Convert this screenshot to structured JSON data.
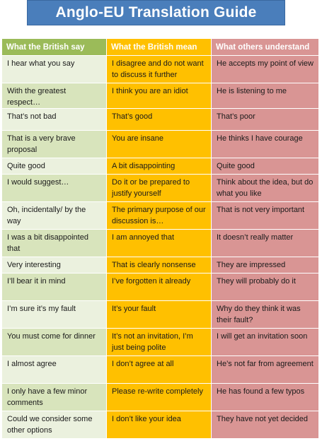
{
  "title": "Anglo-EU Translation Guide",
  "headers": [
    "What the British say",
    "What the British mean",
    "What others understand"
  ],
  "rows": [
    [
      "I hear what you say",
      "I disagree and do not want to discuss it further",
      "He accepts my point of view"
    ],
    [
      "With the greatest respect…",
      "I think you are an idiot",
      "He is listening to me"
    ],
    [
      "That’s not bad",
      "That’s good",
      "That’s poor"
    ],
    [
      "That is a very brave proposal",
      "You are insane",
      "He thinks I have courage"
    ],
    [
      "Quite good",
      "A bit disappointing",
      "Quite good"
    ],
    [
      "I would suggest…",
      "Do it or be prepared to justify yourself",
      "Think about the idea, but do what you like"
    ],
    [
      "Oh, incidentally/ by the way",
      "The primary purpose of our discussion is…",
      "That is not very important"
    ],
    [
      "I was a bit disappointed that",
      "I am annoyed that",
      "It doesn’t really matter"
    ],
    [
      "Very interesting",
      "That is clearly nonsense",
      "They are impressed"
    ],
    [
      "I’ll bear it in mind",
      "I’ve forgotten it already",
      "They will probably do it"
    ],
    [
      "I’m sure it’s my fault",
      "It’s your fault",
      "Why do they think it was their fault?"
    ],
    [
      "You must come for dinner",
      "It’s not an invitation, I’m just being polite",
      "I will get an invitation soon"
    ],
    [
      "I almost agree",
      "I don’t agree at all",
      "He’s not far from agreement"
    ],
    [
      "I only have a few minor comments",
      "Please re-write completely",
      "He has found a few typos"
    ],
    [
      "Could we consider some other options",
      "I don’t like your idea",
      "They have not yet decided"
    ]
  ],
  "colors": {
    "title_bg": "#4a7ebb",
    "col1_header": "#9bbb59",
    "col2_header": "#ffc000",
    "col3_header": "#d99594",
    "col1_cell_light": "#ebf1de",
    "col1_cell_dark": "#d8e4bc",
    "col2_cell": "#ffc000",
    "col3_cell": "#d99594"
  }
}
